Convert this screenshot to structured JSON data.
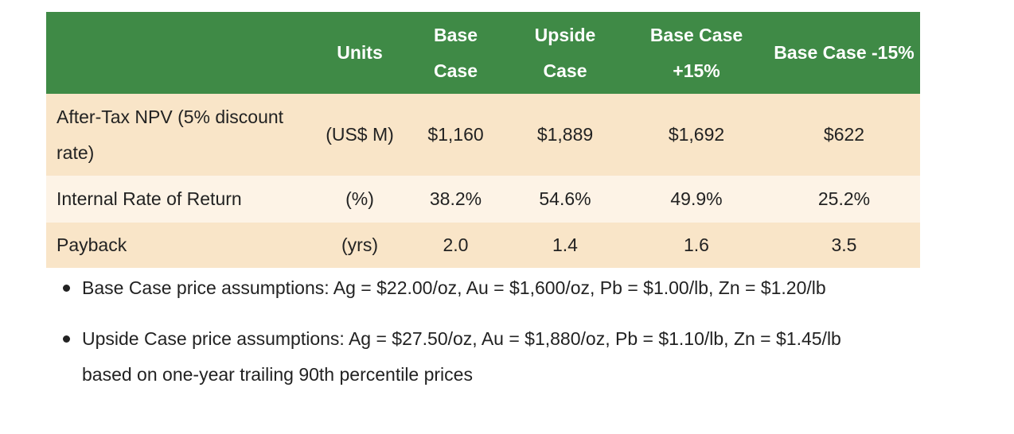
{
  "table": {
    "headers": {
      "metric": "",
      "units": "Units",
      "base_case": "Base Case",
      "upside_case": "Upside Case",
      "base_plus": "Base Case +15%",
      "base_minus": "Base Case -15%"
    },
    "rows": [
      {
        "metric": "After-Tax NPV (5% discount rate)",
        "units": "(US$ M)",
        "base_case": "$1,160",
        "upside_case": "$1,889",
        "base_plus": "$1,692",
        "base_minus": "$622"
      },
      {
        "metric": "Internal Rate of Return",
        "units": "(%)",
        "base_case": "38.2%",
        "upside_case": "54.6%",
        "base_plus": "49.9%",
        "base_minus": "25.2%"
      },
      {
        "metric": "Payback",
        "units": "(yrs)",
        "base_case": "2.0",
        "upside_case": "1.4",
        "base_plus": "1.6",
        "base_minus": "3.5"
      }
    ]
  },
  "notes": [
    "Base Case price assumptions: Ag = $22.00/oz, Au = $1,600/oz, Pb = $1.00/lb, Zn = $1.20/lb",
    "Upside Case price assumptions: Ag = $27.50/oz, Au = $1,880/oz, Pb = $1.10/lb, Zn = $1.45/lb based on one-year trailing 90th percentile prices"
  ],
  "colors": {
    "header_bg": "#3f8a46",
    "row_alt_1": "#f9e5c8",
    "row_alt_2": "#fdf3e6",
    "header_text": "#ffffff",
    "body_text": "#222222"
  }
}
